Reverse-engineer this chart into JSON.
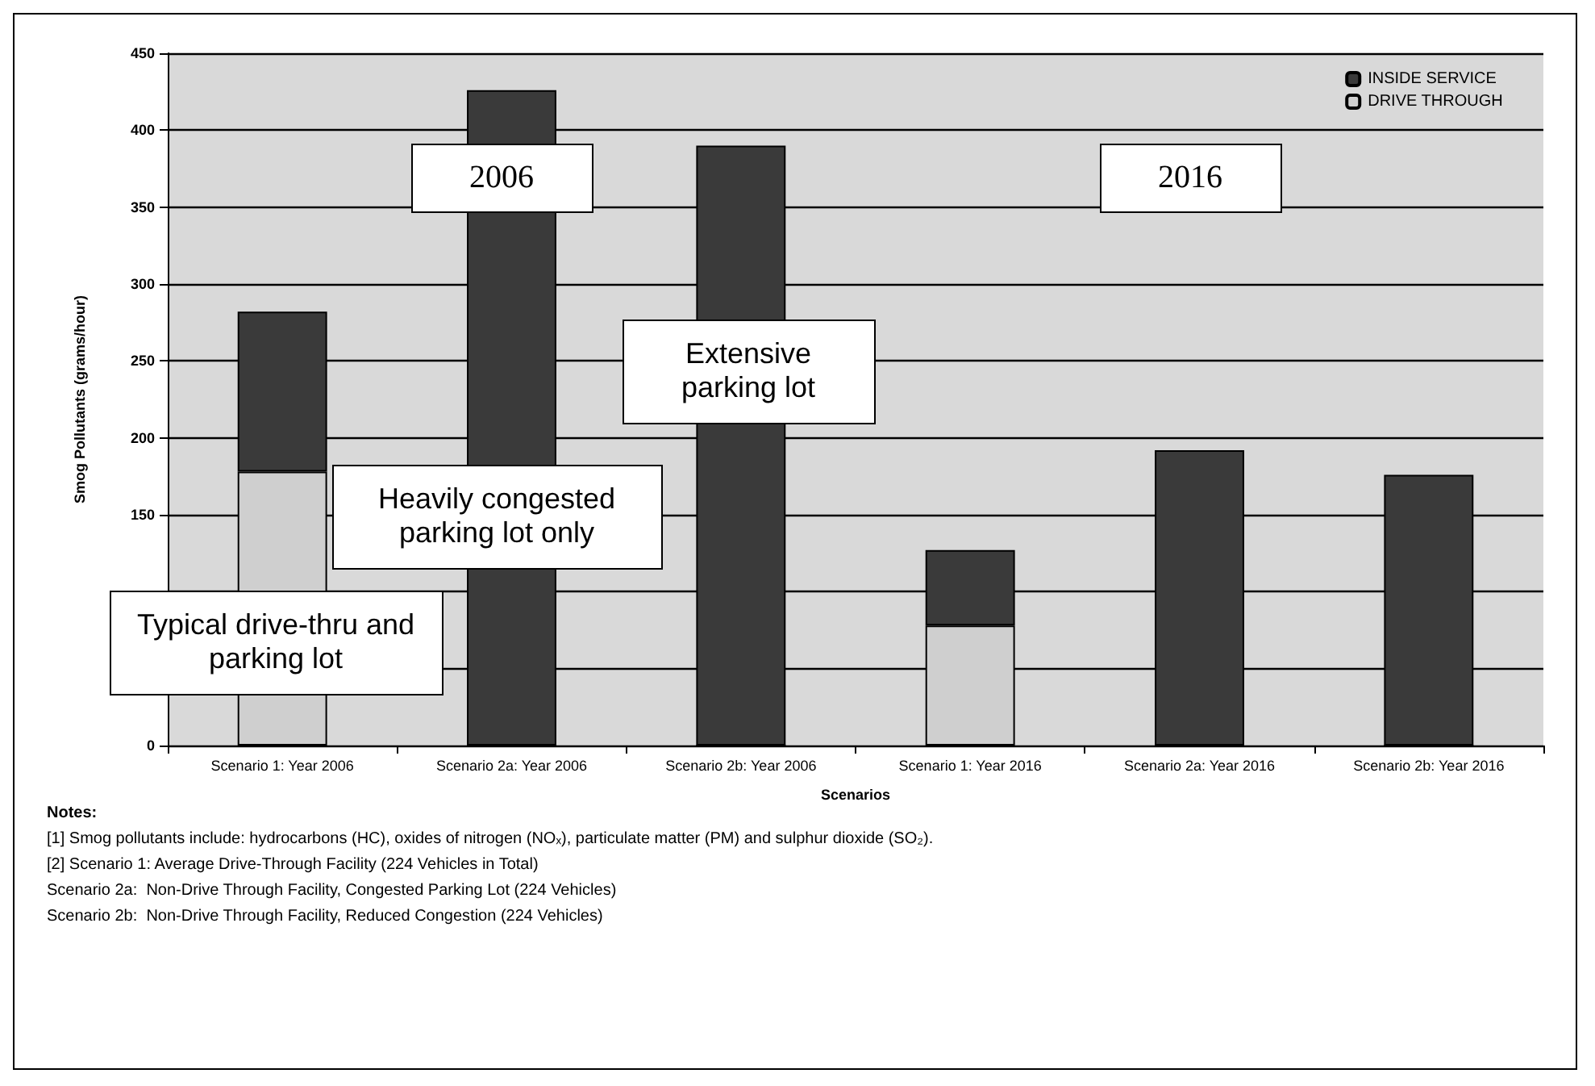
{
  "chart_data": {
    "type": "bar",
    "stacked": true,
    "categories": [
      "Scenario 1: Year 2006",
      "Scenario 2a: Year 2006",
      "Scenario 2b: Year 2006",
      "Scenario 1: Year 2016",
      "Scenario 2a: Year 2016",
      "Scenario 2b: Year 2016"
    ],
    "series": [
      {
        "name": "DRIVE THROUGH",
        "color": "#cfcfcf",
        "values": [
          178,
          0,
          0,
          78,
          0,
          0
        ]
      },
      {
        "name": "INSIDE SERVICE",
        "color": "#3a3a3a",
        "values": [
          104,
          426,
          390,
          49,
          192,
          176
        ]
      }
    ],
    "xlabel": "Scenarios",
    "ylabel": "Smog Pollutants (grams/hour)",
    "ylim": [
      0,
      450
    ],
    "yticks": [
      0,
      {
        "value": 50,
        "label": null
      },
      {
        "value": 100,
        "label": null
      },
      150,
      200,
      250,
      300,
      350,
      400,
      450
    ],
    "grid": "y",
    "legend": "top right",
    "annotations": [
      "2006",
      "2016",
      "Extensive parking lot",
      "Heavily congested parking lot only",
      "Typical drive-thru and parking lot",
      "Notes:",
      "[1] Smog pollutants include: hydrocarbons (HC), oxides of nitrogen (NOₓ), particulate matter (PM) and sulphur dioxide (SO₂).",
      "[2] Scenario 1: Average Drive-Through Facility (224 Vehicles in Total)",
      "Scenario 2a:  Non-Drive Through Facility, Congested Parking Lot (224 Vehicles)",
      "Scenario 2b:  Non-Drive Through Facility, Reduced Congestion (224 Vehicles)"
    ]
  }
}
